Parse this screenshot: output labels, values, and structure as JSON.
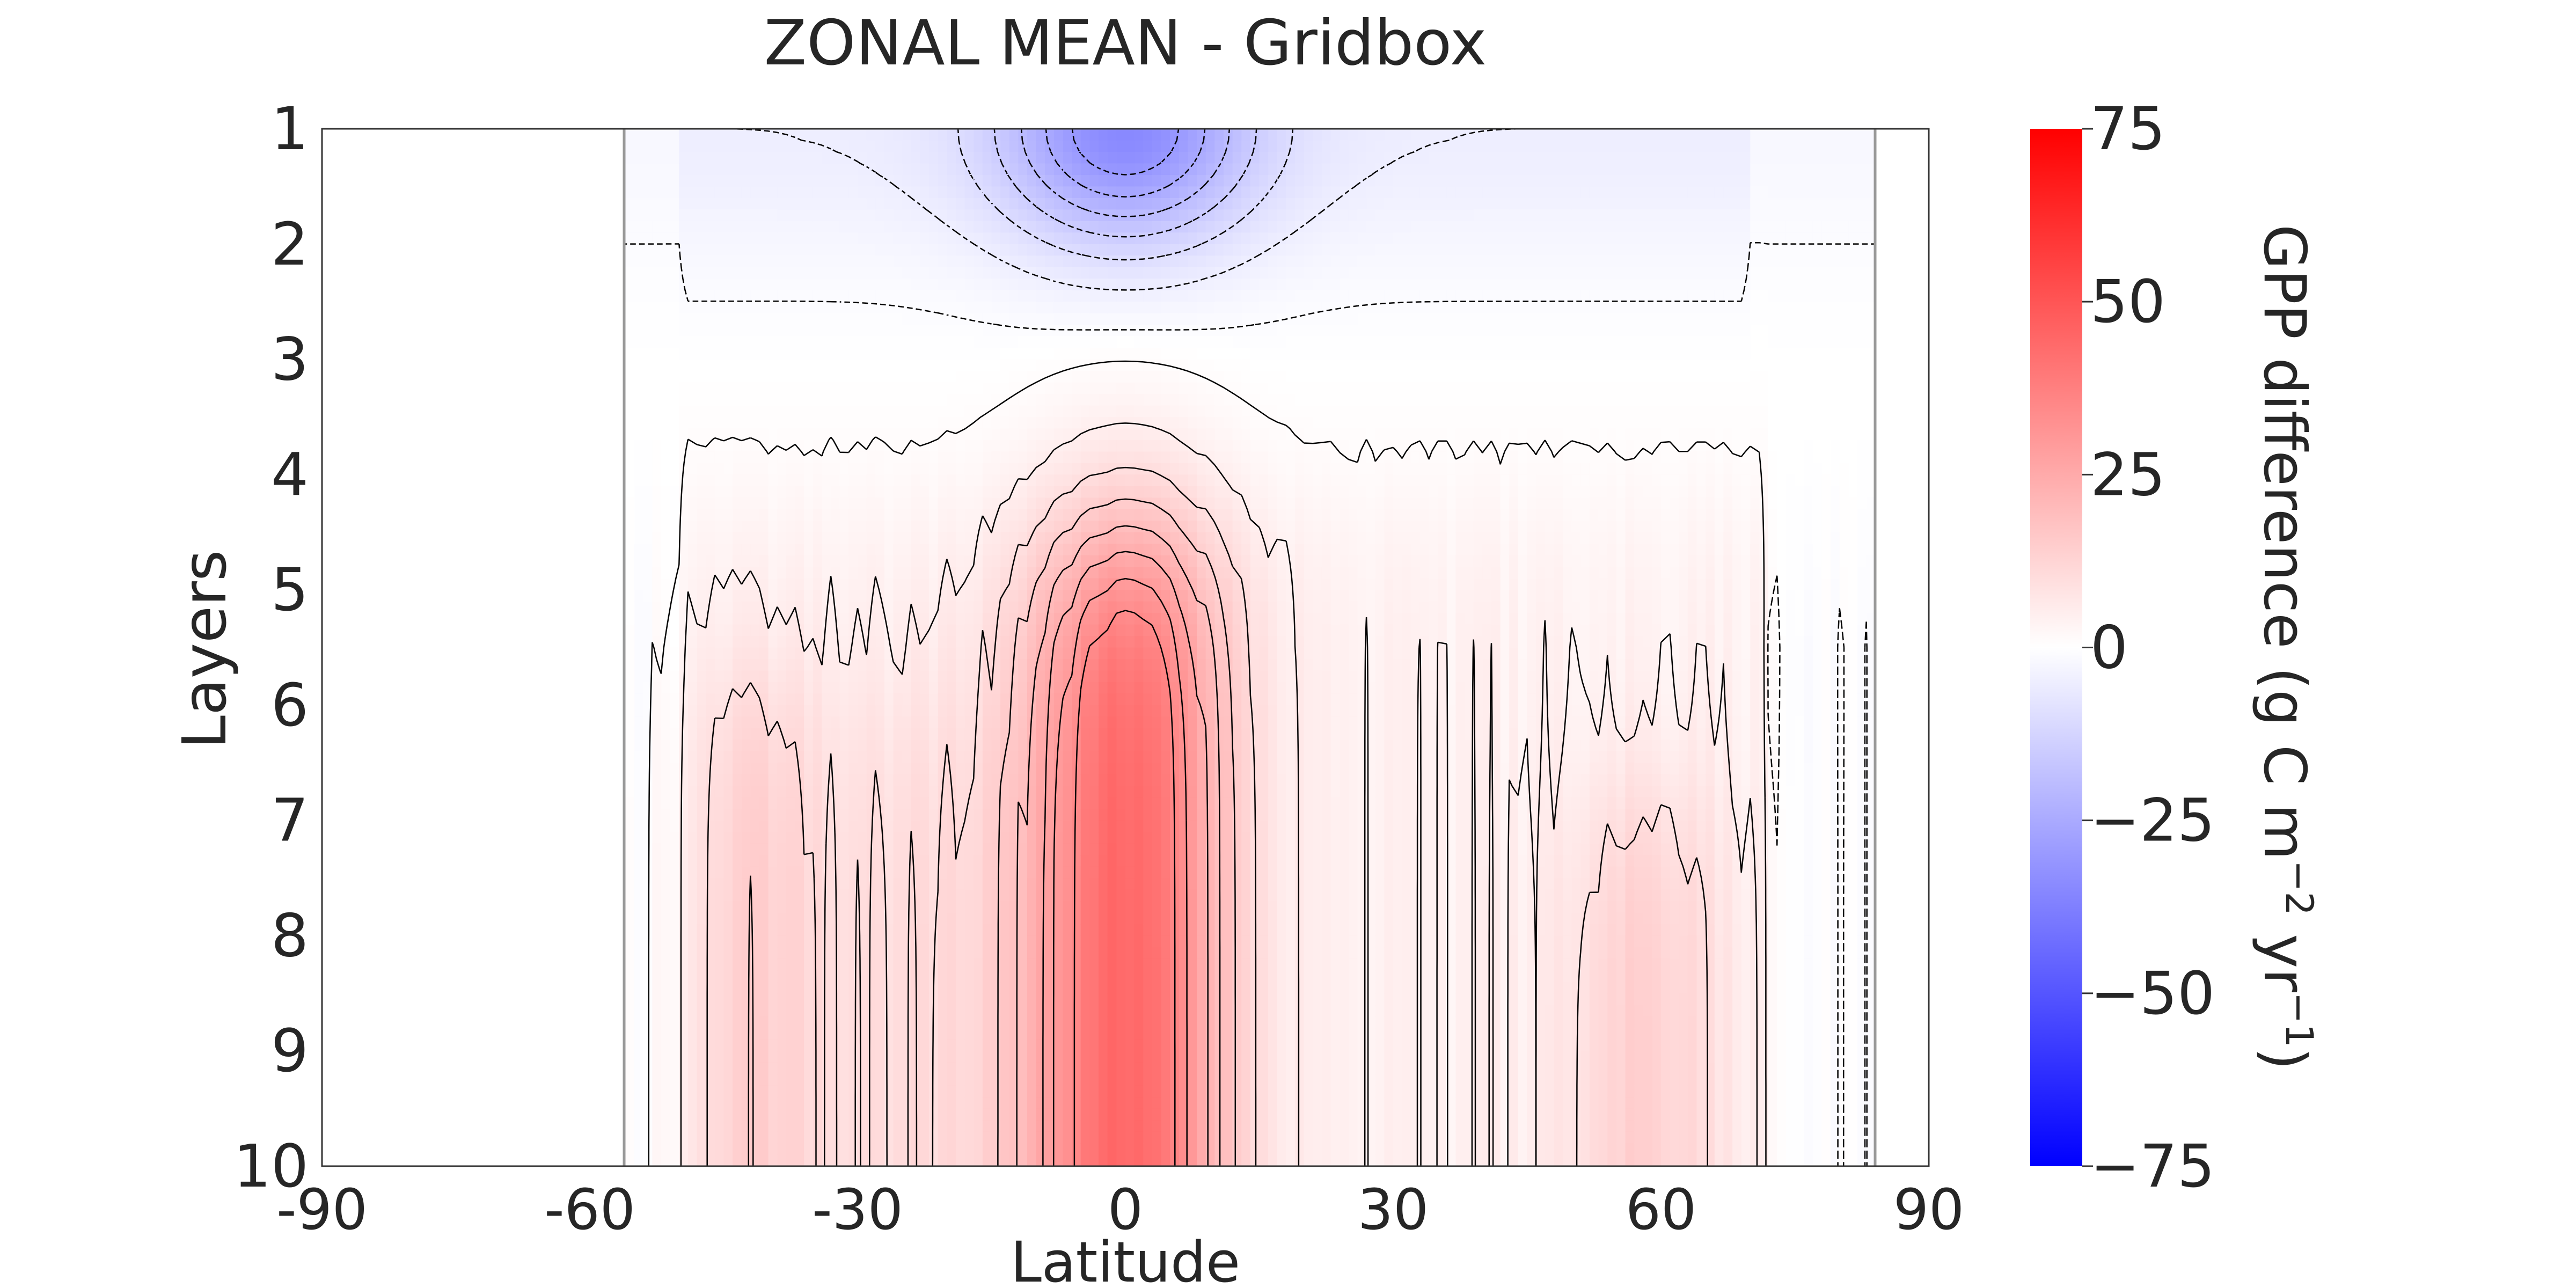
{
  "chart_data": {
    "type": "heatmap",
    "title": "ZONAL MEAN - Gridbox",
    "xlabel": "Latitude",
    "ylabel": "Layers",
    "xlim": [
      -90,
      90
    ],
    "ylim": [
      1,
      10
    ],
    "y_inverted": true,
    "grid": false,
    "x_ticks": [
      -90,
      -60,
      -30,
      0,
      30,
      60,
      90
    ],
    "x_tick_labels": [
      "-90",
      "-60",
      "-30",
      "0",
      "30",
      "60",
      "90"
    ],
    "y_ticks": [
      1,
      2,
      3,
      4,
      5,
      6,
      7,
      8,
      9,
      10
    ],
    "y_tick_labels": [
      "1",
      "2",
      "3",
      "4",
      "5",
      "6",
      "7",
      "8",
      "9",
      "10"
    ],
    "data_lat_range": [
      -56,
      84
    ],
    "colorbar": {
      "label": "GPP difference (g C m⁻² yr⁻¹)",
      "range": [
        -75,
        75
      ],
      "ticks": [
        75,
        50,
        25,
        0,
        -25,
        -50,
        -75
      ],
      "tick_labels": [
        "75",
        "50",
        "25",
        "0",
        "−25",
        "−50",
        "−75"
      ],
      "colors": {
        "low": "#0000ff",
        "mid": "#ffffff",
        "high": "#ff0000"
      }
    },
    "contour_levels": {
      "negative_dashed": [
        -30,
        -25,
        -20,
        -15,
        -10,
        -5,
        -1
      ],
      "positive_solid": [
        1,
        5,
        10,
        15,
        20,
        25,
        30,
        35
      ]
    },
    "fields": {
      "surface_minimum": {
        "lat": 0,
        "layer": 1,
        "value": -30
      },
      "deep_maximum": {
        "lat": 0,
        "layer": 7.5,
        "value": 40
      },
      "midlatitude_north": {
        "lat": 60,
        "layer": 9,
        "value": 10
      },
      "midlatitude_south": {
        "lat": -42,
        "layer": 9,
        "value": 8
      }
    }
  }
}
